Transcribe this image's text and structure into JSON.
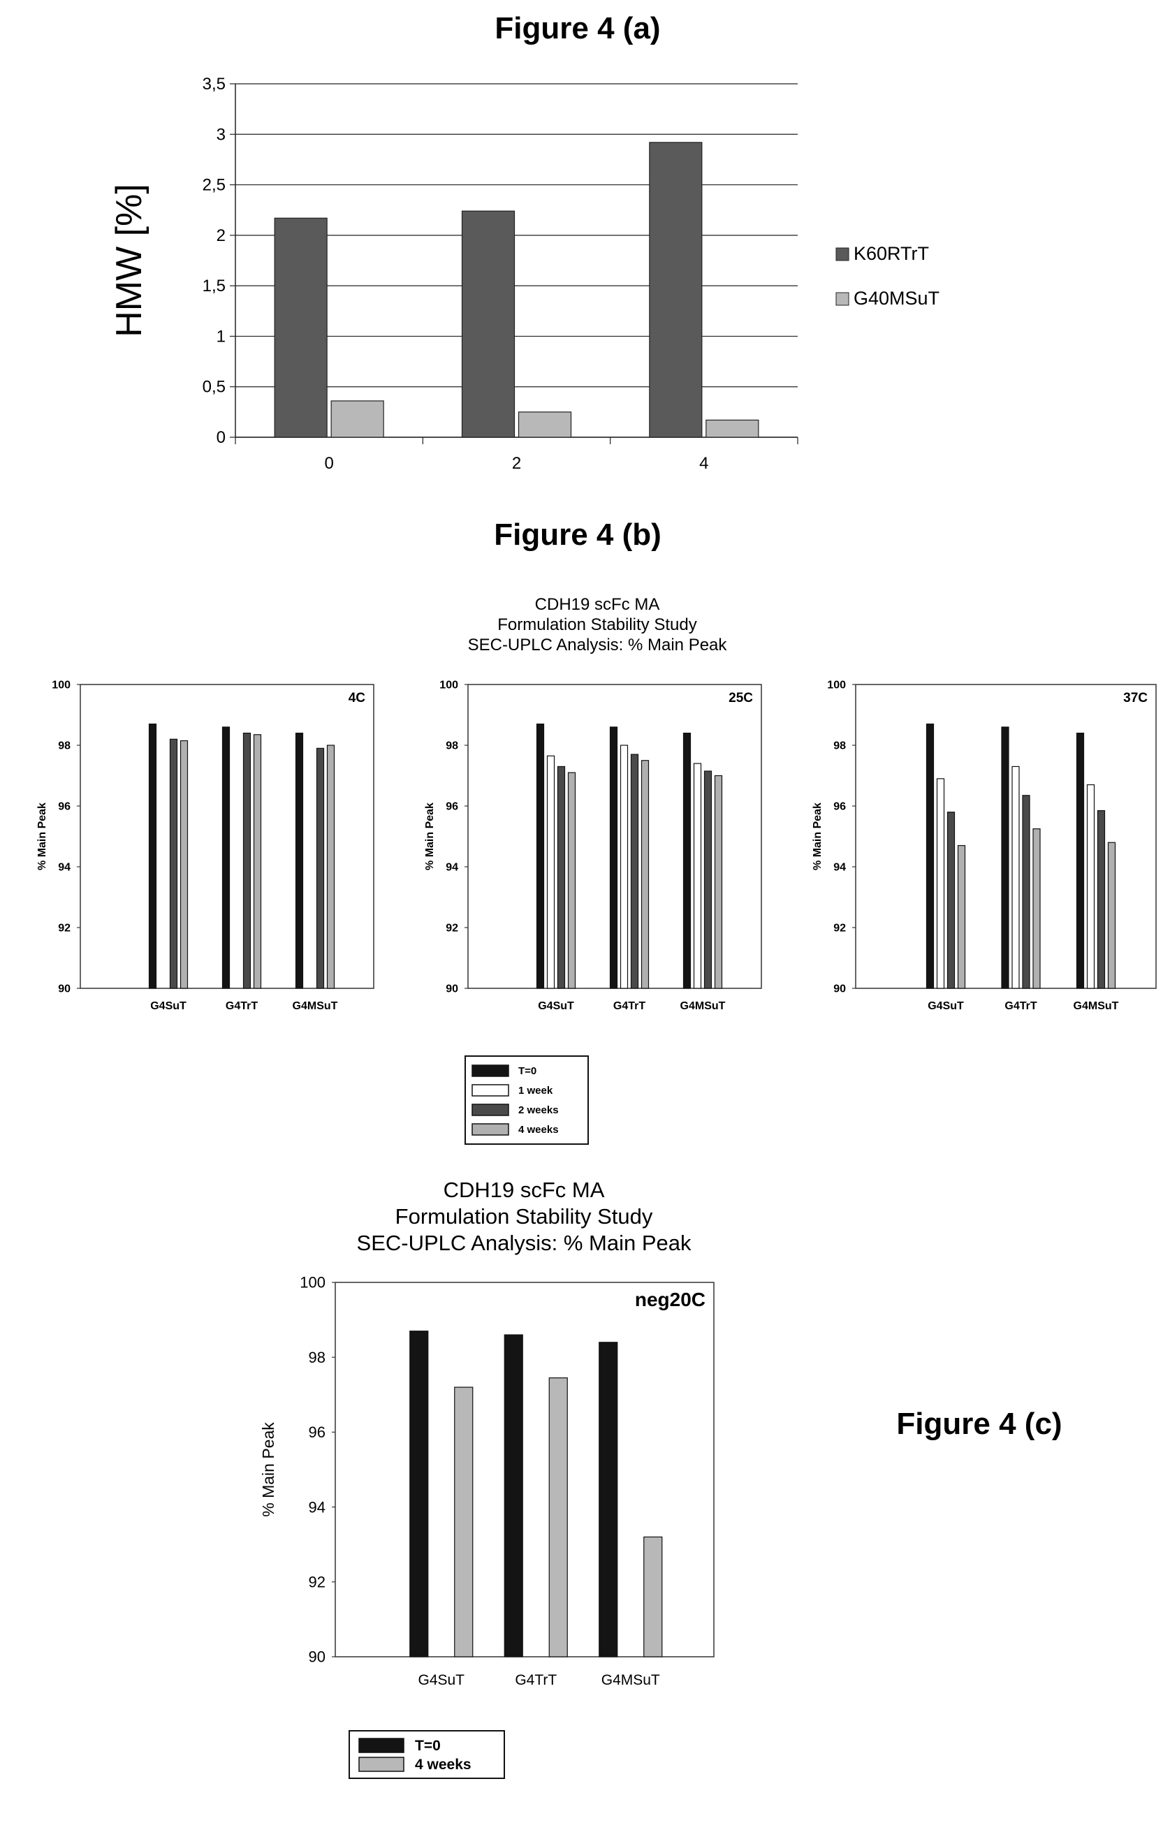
{
  "figure_titles": {
    "a": "Figure 4 (a)",
    "b": "Figure 4 (b)",
    "c": "Figure 4 (c)"
  },
  "section_b": {
    "title_lines": [
      "CDH19 scFc MA",
      "Formulation Stability Study",
      "SEC-UPLC Analysis: % Main Peak"
    ],
    "legend": [
      "T=0",
      "1 week",
      "2 weeks",
      "4 weeks"
    ]
  },
  "section_c": {
    "title_lines": [
      "CDH19 scFc MA",
      "Formulation Stability Study",
      "SEC-UPLC Analysis: % Main Peak"
    ],
    "legend": [
      "T=0",
      "4 weeks"
    ]
  },
  "colors": {
    "series_a": [
      "#5a5a5a",
      "#b8b8b8"
    ],
    "series_b": [
      "#141414",
      "#ffffff",
      "#4a4a4a",
      "#b0b0b0"
    ],
    "series_c": [
      "#141414",
      "#b8b8b8"
    ]
  },
  "chart_data": [
    {
      "id": "a",
      "type": "bar",
      "title": "Figure 4 (a)",
      "xlabel": "",
      "ylabel": "HMW [%]",
      "categories": [
        "0",
        "2",
        "4"
      ],
      "ylim": [
        0,
        3.5
      ],
      "yticks": [
        "0",
        "0,5",
        "1",
        "1,5",
        "2",
        "2,5",
        "3",
        "3,5"
      ],
      "grid": true,
      "legend_position": "right",
      "series": [
        {
          "name": "K60RTrT",
          "values": [
            2.17,
            2.24,
            2.92
          ]
        },
        {
          "name": "G40MSuT",
          "values": [
            0.36,
            0.25,
            0.17
          ]
        }
      ]
    },
    {
      "id": "b1",
      "type": "bar",
      "panel_label": "4C",
      "ylabel": "% Main Peak",
      "categories": [
        "G4SuT",
        "G4TrT",
        "G4MSuT"
      ],
      "ylim": [
        90,
        100
      ],
      "yticks": [
        "90",
        "92",
        "94",
        "96",
        "98",
        "100"
      ],
      "series": [
        {
          "name": "T=0",
          "values": [
            98.7,
            98.6,
            98.4
          ]
        },
        {
          "name": "1 week",
          "values": [
            null,
            null,
            null
          ]
        },
        {
          "name": "2 weeks",
          "values": [
            98.2,
            98.4,
            97.9
          ]
        },
        {
          "name": "4 weeks",
          "values": [
            98.15,
            98.35,
            98.0
          ]
        }
      ]
    },
    {
      "id": "b2",
      "type": "bar",
      "panel_label": "25C",
      "ylabel": "% Main Peak",
      "categories": [
        "G4SuT",
        "G4TrT",
        "G4MSuT"
      ],
      "ylim": [
        90,
        100
      ],
      "yticks": [
        "90",
        "92",
        "94",
        "96",
        "98",
        "100"
      ],
      "series": [
        {
          "name": "T=0",
          "values": [
            98.7,
            98.6,
            98.4
          ]
        },
        {
          "name": "1 week",
          "values": [
            97.65,
            98.0,
            97.4
          ]
        },
        {
          "name": "2 weeks",
          "values": [
            97.3,
            97.7,
            97.15
          ]
        },
        {
          "name": "4 weeks",
          "values": [
            97.1,
            97.5,
            97.0
          ]
        }
      ]
    },
    {
      "id": "b3",
      "type": "bar",
      "panel_label": "37C",
      "ylabel": "% Main Peak",
      "categories": [
        "G4SuT",
        "G4TrT",
        "G4MSuT"
      ],
      "ylim": [
        90,
        100
      ],
      "yticks": [
        "90",
        "92",
        "94",
        "96",
        "98",
        "100"
      ],
      "series": [
        {
          "name": "T=0",
          "values": [
            98.7,
            98.6,
            98.4
          ]
        },
        {
          "name": "1 week",
          "values": [
            96.9,
            97.3,
            96.7
          ]
        },
        {
          "name": "2 weeks",
          "values": [
            95.8,
            96.35,
            95.85
          ]
        },
        {
          "name": "4 weeks",
          "values": [
            94.7,
            95.25,
            94.8
          ]
        }
      ]
    },
    {
      "id": "c",
      "type": "bar",
      "panel_label": "neg20C",
      "ylabel": "% Main Peak",
      "categories": [
        "G4SuT",
        "G4TrT",
        "G4MSuT"
      ],
      "ylim": [
        90,
        100
      ],
      "yticks": [
        "90",
        "92",
        "94",
        "96",
        "98",
        "100"
      ],
      "series": [
        {
          "name": "T=0",
          "values": [
            98.7,
            98.6,
            98.4
          ]
        },
        {
          "name": "4 weeks",
          "values": [
            97.2,
            97.45,
            93.2
          ]
        }
      ]
    }
  ]
}
